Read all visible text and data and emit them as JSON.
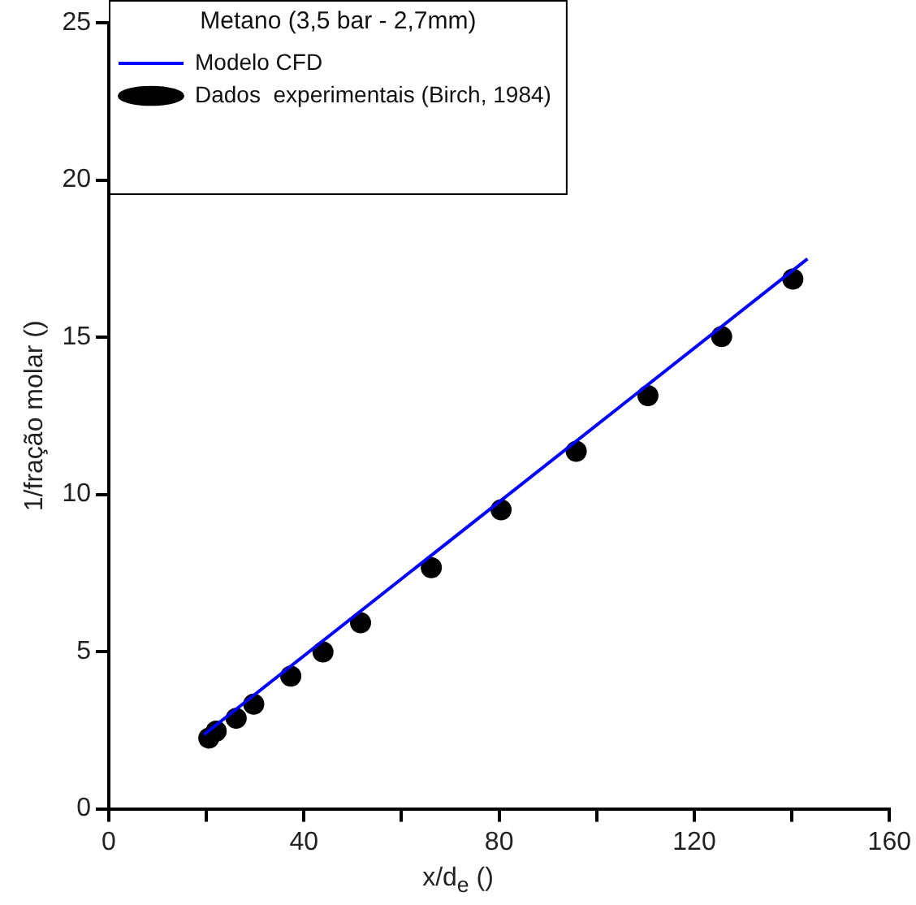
{
  "chart_data": {
    "type": "scatter",
    "xlabel": "x/d$_{e}$ ()",
    "ylabel": "1/fração molar ()",
    "legend_title": "Metano (3,5 bar - 2,7mm)",
    "legend": "top left",
    "marker": "circle",
    "grid": false,
    "xlim": [
      0,
      160
    ],
    "xticks": [
      0,
      {
        "value": 20,
        "label": null
      },
      40,
      {
        "value": 60,
        "label": null
      },
      80,
      {
        "value": 100,
        "label": null
      },
      120,
      {
        "value": 140,
        "label": null
      },
      160
    ],
    "ylim": [
      0,
      25
    ],
    "yticks": [
      0,
      5,
      10,
      15,
      20,
      25
    ],
    "series": [
      {
        "name": "Dados  experimentais (Birch, 1984)",
        "color": "#000000",
        "x": [
          20.5,
          22,
          26.1,
          29.7,
          37.3,
          43.9,
          51.6,
          66.1,
          80.4,
          95.8,
          110.5,
          125.6,
          140.2
        ],
        "values": [
          2.25,
          2.47,
          2.88,
          3.33,
          4.22,
          4.99,
          5.92,
          7.67,
          9.51,
          11.37,
          13.14,
          15.02,
          16.85
        ]
      },
      {
        "name": "Modelo CFD",
        "color": "#0000ff",
        "type": "line",
        "marker": "none",
        "x": [
          19.5,
          143.2
        ],
        "values": [
          2.36,
          17.49
        ]
      }
    ]
  }
}
